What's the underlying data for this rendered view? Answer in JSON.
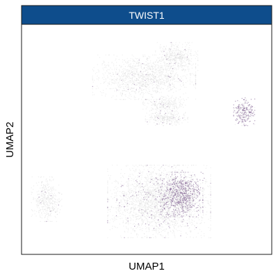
{
  "chart_data": {
    "type": "scatter",
    "title": "TWIST1",
    "xlabel": "UMAP1",
    "ylabel": "UMAP2",
    "x_ticks": [],
    "y_ticks": [],
    "grid": false,
    "legend": "none",
    "colors": {
      "strip_fill": "#0e4d8c",
      "strip_border": "#1a1a1a",
      "panel_border": "#1a1a1a",
      "low_expression": "#d4d4d4",
      "high_expression": "#7b5a8e"
    },
    "clusters": [
      {
        "name": "",
        "center": [
          0.49,
          0.77
        ],
        "spread": [
          0.17,
          0.08
        ],
        "points": 1300,
        "expression": 0.02
      },
      {
        "name": "",
        "center": [
          0.62,
          0.86
        ],
        "spread": [
          0.07,
          0.05
        ],
        "points": 400,
        "expression": 0.02
      },
      {
        "name": "",
        "center": [
          0.57,
          0.65
        ],
        "spread": [
          0.07,
          0.03
        ],
        "points": 260,
        "expression": 0.02
      },
      {
        "name": "",
        "center": [
          0.58,
          0.59
        ],
        "spread": [
          0.07,
          0.025
        ],
        "points": 260,
        "expression": 0.02
      },
      {
        "name": "",
        "center": [
          0.89,
          0.62
        ],
        "spread": [
          0.035,
          0.05
        ],
        "points": 320,
        "expression": 0.55
      },
      {
        "name": "",
        "center": [
          0.55,
          0.23
        ],
        "spread": [
          0.17,
          0.13
        ],
        "points": 2600,
        "expression": 0.06
      },
      {
        "name": "",
        "center": [
          0.64,
          0.26
        ],
        "spread": [
          0.07,
          0.08
        ],
        "points": 1100,
        "expression": 0.5
      },
      {
        "name": "",
        "center": [
          0.1,
          0.24
        ],
        "spread": [
          0.05,
          0.08
        ],
        "points": 420,
        "expression": 0.02
      }
    ]
  }
}
